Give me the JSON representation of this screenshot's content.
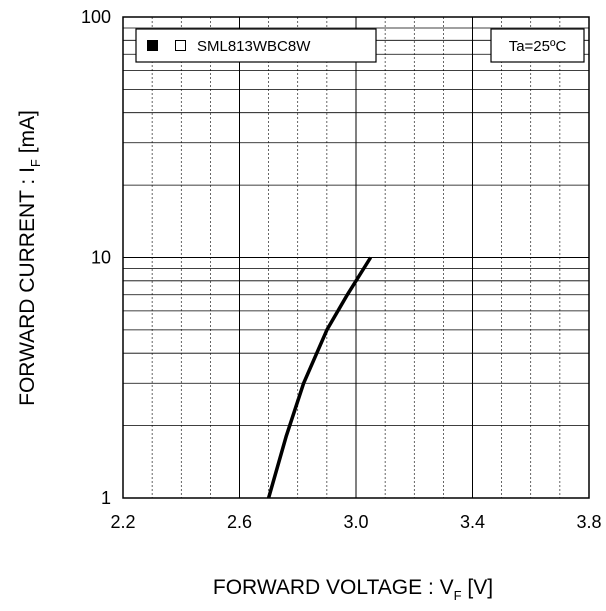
{
  "chart_data": {
    "type": "line",
    "title": "",
    "xlabel": {
      "main": "FORWARD VOLTAGE : V",
      "sub": "F",
      "unit": " [V]"
    },
    "ylabel": {
      "main": "FORWARD CURRENT : I",
      "sub": "F",
      "unit": " [mA]"
    },
    "xlim": [
      2.2,
      3.8
    ],
    "ylim": [
      1,
      100
    ],
    "y_scale": "log",
    "grid": true,
    "x_ticks": [
      "2.2",
      "2.6",
      "3.0",
      "3.4",
      "3.8"
    ],
    "y_ticks": [
      "1",
      "10",
      "100"
    ],
    "legend": {
      "position": "top-left",
      "markers": [
        "filled-square",
        "open-square"
      ],
      "label": "SML813WBC8W"
    },
    "annotation": "Ta=25ºC",
    "series": [
      {
        "name": "SML813WBC8W",
        "color": "#000000",
        "x": [
          2.7,
          2.76,
          2.82,
          2.9,
          2.97,
          3.05
        ],
        "y": [
          1,
          1.8,
          3,
          5,
          7,
          10
        ]
      }
    ]
  }
}
